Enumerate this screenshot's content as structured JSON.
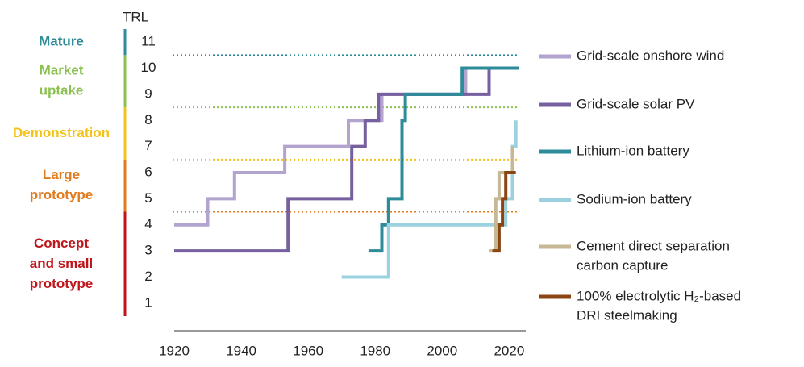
{
  "chart_data": {
    "type": "line",
    "step": true,
    "y_axis_title": "TRL",
    "xlim": [
      1920,
      2024
    ],
    "ylim": [
      0.5,
      11.5
    ],
    "x_ticks": [
      1920,
      1940,
      1960,
      1980,
      2000,
      2020
    ],
    "y_ticks": [
      1,
      2,
      3,
      4,
      5,
      6,
      7,
      8,
      9,
      10,
      11
    ],
    "grid": false,
    "legend_position": "right",
    "categories": [
      {
        "lines": [
          "Mature"
        ],
        "color": "#2e8b99",
        "trl_from": 10.5,
        "trl_to": 11.5
      },
      {
        "lines": [
          "Market",
          "uptake"
        ],
        "color": "#8cc152",
        "trl_from": 8.5,
        "trl_to": 10.5
      },
      {
        "lines": [
          "Demonstration"
        ],
        "color": "#f2c318",
        "trl_from": 6.5,
        "trl_to": 8.5
      },
      {
        "lines": [
          "Large",
          "prototype"
        ],
        "color": "#e07b1e",
        "trl_from": 4.5,
        "trl_to": 6.5
      },
      {
        "lines": [
          "Concept",
          "and small",
          "prototype"
        ],
        "color": "#c0151b",
        "trl_from": 0.5,
        "trl_to": 4.5
      }
    ],
    "thresholds": [
      {
        "y": 10.5,
        "color": "#2e8b99"
      },
      {
        "y": 8.5,
        "color": "#8cc152"
      },
      {
        "y": 6.5,
        "color": "#f2c318"
      },
      {
        "y": 4.5,
        "color": "#e07b1e"
      }
    ],
    "series": [
      {
        "name": "Grid-scale onshore wind",
        "color": "#b3a3cf",
        "points": [
          [
            1920,
            4
          ],
          [
            1930,
            4
          ],
          [
            1930,
            5
          ],
          [
            1938,
            5
          ],
          [
            1938,
            6
          ],
          [
            1953,
            6
          ],
          [
            1953,
            7
          ],
          [
            1972,
            7
          ],
          [
            1972,
            8
          ],
          [
            1982,
            8
          ],
          [
            1982,
            9
          ],
          [
            2007,
            9
          ],
          [
            2007,
            10
          ],
          [
            2023,
            10
          ]
        ]
      },
      {
        "name": "Grid-scale solar PV",
        "color": "#76609f",
        "points": [
          [
            1920,
            3
          ],
          [
            1954,
            3
          ],
          [
            1954,
            5
          ],
          [
            1973,
            5
          ],
          [
            1973,
            7
          ],
          [
            1977,
            7
          ],
          [
            1977,
            8
          ],
          [
            1981,
            8
          ],
          [
            1981,
            9
          ],
          [
            2014,
            9
          ],
          [
            2014,
            10
          ],
          [
            2023,
            10
          ]
        ]
      },
      {
        "name": "Lithium-ion battery",
        "color": "#2e8b99",
        "points": [
          [
            1978,
            3
          ],
          [
            1982,
            3
          ],
          [
            1982,
            4
          ],
          [
            1984,
            4
          ],
          [
            1984,
            5
          ],
          [
            1988,
            5
          ],
          [
            1988,
            8
          ],
          [
            1989,
            8
          ],
          [
            1989,
            9
          ],
          [
            2006,
            9
          ],
          [
            2006,
            10
          ],
          [
            2023,
            10
          ]
        ]
      },
      {
        "name": "Sodium-ion battery",
        "color": "#9ad2e0",
        "points": [
          [
            1970,
            2
          ],
          [
            1984,
            2
          ],
          [
            1984,
            4
          ],
          [
            2019,
            4
          ],
          [
            2019,
            5
          ],
          [
            2021,
            5
          ],
          [
            2021,
            7
          ],
          [
            2022,
            7
          ],
          [
            2022,
            8
          ]
        ]
      },
      {
        "name": [
          "Cement direct separation",
          "carbon capture"
        ],
        "color": "#c6b795",
        "points": [
          [
            2014,
            3
          ],
          [
            2016,
            3
          ],
          [
            2016,
            5
          ],
          [
            2017,
            5
          ],
          [
            2017,
            6
          ],
          [
            2021,
            6
          ],
          [
            2021,
            7
          ]
        ]
      },
      {
        "name": [
          "100% electrolytic H₂-based",
          "DRI steelmaking"
        ],
        "color": "#8b4513",
        "points": [
          [
            2015,
            3
          ],
          [
            2017,
            3
          ],
          [
            2017,
            4
          ],
          [
            2018,
            4
          ],
          [
            2018,
            5
          ],
          [
            2019,
            5
          ],
          [
            2019,
            6
          ],
          [
            2022,
            6
          ]
        ]
      }
    ]
  }
}
